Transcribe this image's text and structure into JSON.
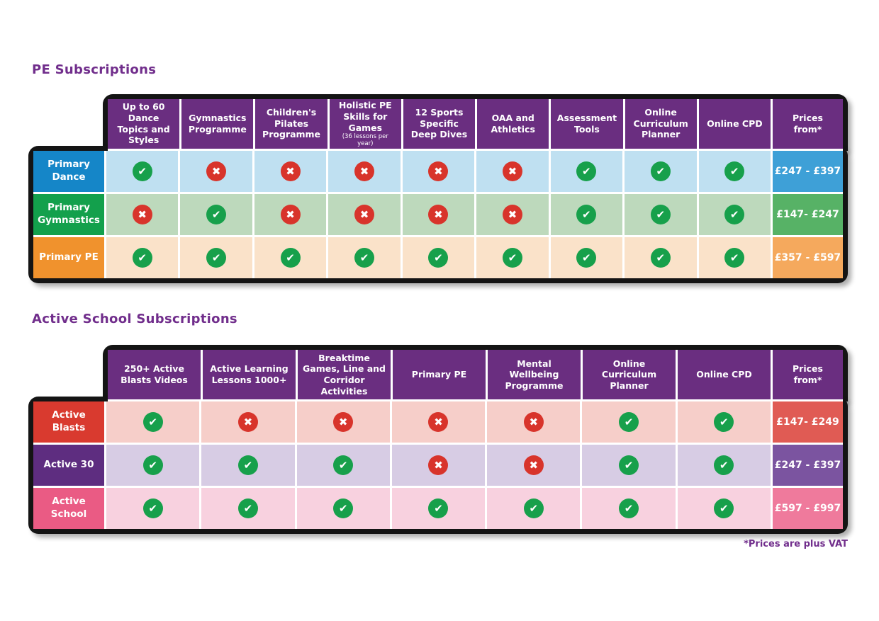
{
  "footnote": "*Prices are plus VAT",
  "colors": {
    "header_purple": "#6A2E80",
    "title_purple": "#712E8C",
    "check_green": "#17A04B",
    "cross_red": "#D8342B",
    "outline_black": "#141414"
  },
  "tables": [
    {
      "title": "PE Subscriptions",
      "price_header": "Prices from*",
      "columns": [
        {
          "label": "Up to 60 Dance Topics and Styles"
        },
        {
          "label": "Gymnastics Programme"
        },
        {
          "label": "Children's Pilates Programme"
        },
        {
          "label": "Holistic PE Skills for Games",
          "note": "(36 lessons per year)"
        },
        {
          "label": "12 Sports Specific Deep Dives"
        },
        {
          "label": "OAA and Athletics"
        },
        {
          "label": "Assessment Tools"
        },
        {
          "label": "Online Curriculum Planner"
        },
        {
          "label": "Online CPD"
        }
      ],
      "rows": [
        {
          "label": "Primary Dance",
          "label_bg": "#1586C8",
          "row_bg": "#BFE0F1",
          "price_bg": "#3EA0D7",
          "price": "£247 - £397",
          "marks": [
            "yes",
            "no",
            "no",
            "no",
            "no",
            "no",
            "yes",
            "yes",
            "yes"
          ]
        },
        {
          "label": "Primary Gymnastics",
          "label_bg": "#13A04C",
          "row_bg": "#BDD9BC",
          "price_bg": "#57B266",
          "price": "£147- £247",
          "marks": [
            "no",
            "yes",
            "no",
            "no",
            "no",
            "no",
            "yes",
            "yes",
            "yes"
          ]
        },
        {
          "label": "Primary PE",
          "label_bg": "#F0922D",
          "row_bg": "#FAE2C9",
          "price_bg": "#F5A95D",
          "price": "£357 - £597",
          "marks": [
            "yes",
            "yes",
            "yes",
            "yes",
            "yes",
            "yes",
            "yes",
            "yes",
            "yes"
          ]
        }
      ]
    },
    {
      "title": "Active School Subscriptions",
      "price_header": "Prices from*",
      "columns": [
        {
          "label": "250+ Active Blasts Videos"
        },
        {
          "label": "Active Learning Lessons 1000+"
        },
        {
          "label": "Breaktime Games, Line and Corridor Activities"
        },
        {
          "label": "Primary PE"
        },
        {
          "label": "Mental Wellbeing Programme"
        },
        {
          "label": "Online Curriculum Planner"
        },
        {
          "label": "Online CPD"
        }
      ],
      "rows": [
        {
          "label": "Active Blasts",
          "label_bg": "#D93A2F",
          "row_bg": "#F6CEC9",
          "price_bg": "#E05B54",
          "price": "£147- £249",
          "marks": [
            "yes",
            "no",
            "no",
            "no",
            "no",
            "yes",
            "yes"
          ]
        },
        {
          "label": "Active 30",
          "label_bg": "#5E2D80",
          "row_bg": "#D7CCE4",
          "price_bg": "#7B54A0",
          "price": "£247 - £397",
          "marks": [
            "yes",
            "yes",
            "yes",
            "no",
            "no",
            "yes",
            "yes"
          ]
        },
        {
          "label": "Active School",
          "label_bg": "#EA5B84",
          "row_bg": "#F8D1DF",
          "price_bg": "#EF7A9C",
          "price": "£597 - £997",
          "marks": [
            "yes",
            "yes",
            "yes",
            "yes",
            "yes",
            "yes",
            "yes"
          ]
        }
      ]
    }
  ]
}
